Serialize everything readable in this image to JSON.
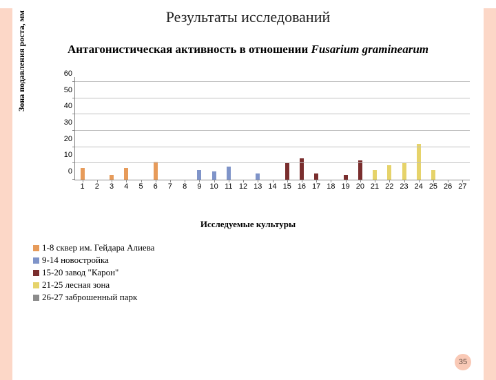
{
  "title1": "Результаты исследований",
  "title2_a": "Антагонистическая активность в отношении ",
  "title2_b": "Fusarium graminearum",
  "chart": {
    "type": "bar",
    "ylabel": "Зона подавления роста, мм",
    "xlabel": "Исследуемые культуры",
    "ylim": [
      0,
      63
    ],
    "yticks": [
      0,
      10,
      20,
      30,
      40,
      50,
      60
    ],
    "categories": [
      "1",
      "2",
      "3",
      "4",
      "5",
      "6",
      "7",
      "8",
      "9",
      "10",
      "11",
      "12",
      "13",
      "14",
      "15",
      "16",
      "17",
      "18",
      "19",
      "20",
      "21",
      "22",
      "23",
      "24",
      "25",
      "26",
      "27"
    ],
    "colors": {
      "g1": "#e79b5a",
      "g2": "#7f94c9",
      "g3": "#7a2e2e",
      "g4": "#e6d36a",
      "g5": "#8c8c8c"
    },
    "grid_color": "#bfbfbf",
    "border_color": "#888888",
    "points": [
      {
        "x": 1,
        "v": 7,
        "c": "g1"
      },
      {
        "x": 3,
        "v": 3,
        "c": "g1"
      },
      {
        "x": 4,
        "v": 7,
        "c": "g1"
      },
      {
        "x": 6,
        "v": 11,
        "c": "g1"
      },
      {
        "x": 9,
        "v": 6,
        "c": "g2"
      },
      {
        "x": 10,
        "v": 5,
        "c": "g2"
      },
      {
        "x": 11,
        "v": 8,
        "c": "g2"
      },
      {
        "x": 13,
        "v": 4,
        "c": "g2"
      },
      {
        "x": 15,
        "v": 10,
        "c": "g3"
      },
      {
        "x": 16,
        "v": 13,
        "c": "g3"
      },
      {
        "x": 17,
        "v": 4,
        "c": "g3"
      },
      {
        "x": 19,
        "v": 3,
        "c": "g3"
      },
      {
        "x": 20,
        "v": 12,
        "c": "g3"
      },
      {
        "x": 21,
        "v": 6,
        "c": "g4"
      },
      {
        "x": 22,
        "v": 9,
        "c": "g4"
      },
      {
        "x": 23,
        "v": 10,
        "c": "g4"
      },
      {
        "x": 24,
        "v": 22,
        "c": "g4"
      },
      {
        "x": 25,
        "v": 6,
        "c": "g4"
      }
    ]
  },
  "legend": [
    {
      "c": "g1",
      "label": "1-8 сквер им. Гейдара Алиева"
    },
    {
      "c": "g2",
      "label": "9-14 новостройка"
    },
    {
      "c": "g3",
      "label": "15-20 завод \"Карон\""
    },
    {
      "c": "g4",
      "label": "21-25 лесная зона"
    },
    {
      "c": "g5",
      "label": "26-27 заброшенный парк"
    }
  ],
  "page_number": "35",
  "frame_color": "#fcd7c7"
}
